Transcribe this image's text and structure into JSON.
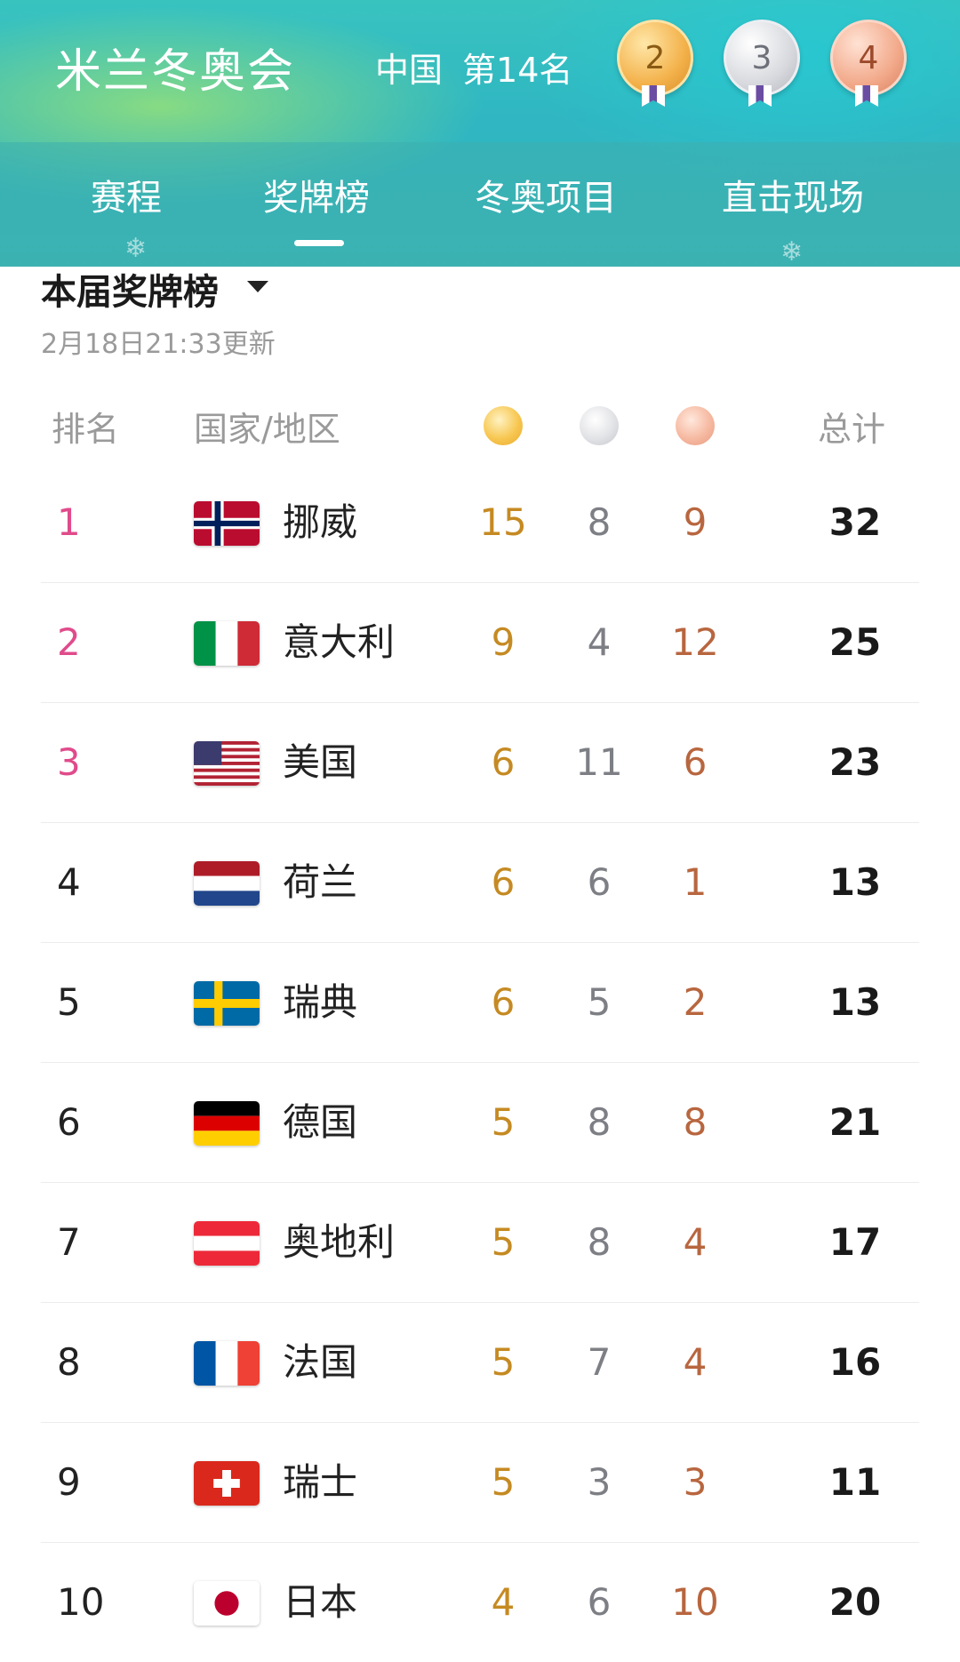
{
  "header": {
    "title": "米兰冬奥会",
    "country": "中国",
    "rank_text": "第14名",
    "gold": "2",
    "silver": "3",
    "bronze": "4"
  },
  "tabs": [
    {
      "label": "赛程"
    },
    {
      "label": "奖牌榜"
    },
    {
      "label": "冬奥项目"
    },
    {
      "label": "直击现场"
    }
  ],
  "active_tab": "奖牌榜",
  "section": {
    "title": "本届奖牌榜",
    "updated": "2月18日21:33更新"
  },
  "columns": {
    "rank": "排名",
    "country": "国家/地区",
    "gold_icon": "gold-medal-icon",
    "silver_icon": "silver-medal-icon",
    "bronze_icon": "bronze-medal-icon",
    "total": "总计"
  },
  "rows": [
    {
      "rank": "1",
      "country": "挪威",
      "flag": "norway-flag",
      "gold": "15",
      "silver": "8",
      "bronze": "9",
      "total": "32"
    },
    {
      "rank": "2",
      "country": "意大利",
      "flag": "italy-flag",
      "gold": "9",
      "silver": "4",
      "bronze": "12",
      "total": "25"
    },
    {
      "rank": "3",
      "country": "美国",
      "flag": "usa-flag",
      "gold": "6",
      "silver": "11",
      "bronze": "6",
      "total": "23"
    },
    {
      "rank": "4",
      "country": "荷兰",
      "flag": "netherlands-flag",
      "gold": "6",
      "silver": "6",
      "bronze": "1",
      "total": "13"
    },
    {
      "rank": "5",
      "country": "瑞典",
      "flag": "sweden-flag",
      "gold": "6",
      "silver": "5",
      "bronze": "2",
      "total": "13"
    },
    {
      "rank": "6",
      "country": "德国",
      "flag": "germany-flag",
      "gold": "5",
      "silver": "8",
      "bronze": "8",
      "total": "21"
    },
    {
      "rank": "7",
      "country": "奥地利",
      "flag": "austria-flag",
      "gold": "5",
      "silver": "8",
      "bronze": "4",
      "total": "17"
    },
    {
      "rank": "8",
      "country": "法国",
      "flag": "france-flag",
      "gold": "5",
      "silver": "7",
      "bronze": "4",
      "total": "16"
    },
    {
      "rank": "9",
      "country": "瑞士",
      "flag": "switzerland-flag",
      "gold": "5",
      "silver": "3",
      "bronze": "3",
      "total": "11"
    },
    {
      "rank": "10",
      "country": "日本",
      "flag": "japan-flag",
      "gold": "4",
      "silver": "6",
      "bronze": "10",
      "total": "20"
    }
  ],
  "colors": {
    "accent_rank": "#e04b8b",
    "gold": "#c58a22",
    "silver": "#7d7f85",
    "bronze": "#b8663f",
    "header_teal": "#2fb6c2"
  }
}
